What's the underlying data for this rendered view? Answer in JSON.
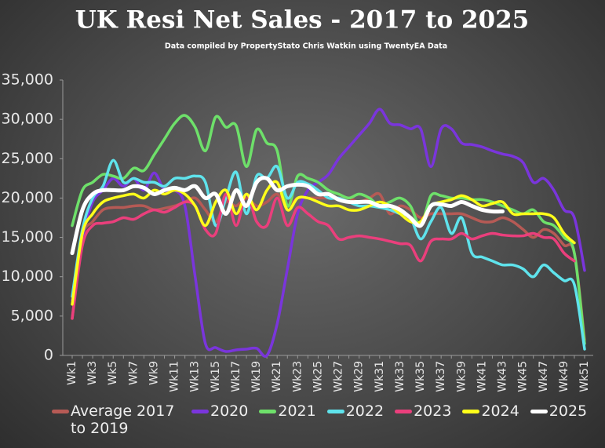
{
  "chart_data": {
    "type": "line",
    "title": "UK  Resi Net Sales - 2017 to 2025",
    "subtitle": "Data compiled by PropertyStato Chris Watkin using TwentyEA Data",
    "categories": [
      "Wk1",
      null,
      "Wk3",
      null,
      "Wk5",
      null,
      "Wk7",
      null,
      "Wk9",
      null,
      "Wk11",
      null,
      "Wk13",
      null,
      "Wk15",
      null,
      "Wk17",
      null,
      "Wk19",
      null,
      "Wk21",
      null,
      "Wk23",
      null,
      "Wk25",
      null,
      "Wk27",
      null,
      "Wk29",
      null,
      "Wk31",
      null,
      "Wk33",
      null,
      "Wk35",
      null,
      "Wk37",
      null,
      "Wk39",
      null,
      "Wk41",
      null,
      "Wk43",
      null,
      "Wk45",
      null,
      "Wk47",
      null,
      "Wk49",
      null,
      "Wk51"
    ],
    "ylim": [
      0,
      35000
    ],
    "yticks": [
      0,
      {
        "value": 5000,
        "label": "5,000"
      },
      {
        "value": 10000,
        "label": "10,000"
      },
      {
        "value": 15000,
        "label": "15,000"
      },
      {
        "value": 20000,
        "label": "20,000"
      },
      {
        "value": 25000,
        "label": "25,000"
      },
      {
        "value": 30000,
        "label": "30,000"
      },
      {
        "value": 35000,
        "label": "35,000"
      }
    ],
    "legend": "bottom",
    "series": [
      {
        "name": "Average 2017 to 2019",
        "color": "#b65a55",
        "values": [
          4700,
          15000,
          17000,
          18500,
          18800,
          18800,
          19000,
          19000,
          18500,
          18700,
          19000,
          19500,
          20000,
          18500,
          17000,
          19500,
          19000,
          20000,
          19000,
          19500,
          20500,
          19000,
          20000,
          20000,
          20000,
          20000,
          20000,
          20000,
          19500,
          20000,
          20500,
          18000,
          19000,
          18500,
          17500,
          18000,
          18000,
          18000,
          18000,
          17500,
          17000,
          17000,
          17500,
          17000,
          16000,
          15000,
          16000,
          15500,
          14000,
          13000,
          2000
        ]
      },
      {
        "name": "2020",
        "color": "#7a35dc",
        "values": [
          7000,
          15000,
          19500,
          21000,
          22500,
          21500,
          22500,
          21000,
          23200,
          21000,
          21000,
          19000,
          10000,
          1500,
          1000,
          500,
          700,
          800,
          900,
          0,
          4000,
          11000,
          18000,
          21000,
          22000,
          23000,
          25000,
          26500,
          28000,
          29500,
          31300,
          29500,
          29300,
          28800,
          28800,
          24000,
          28800,
          28800,
          27000,
          26800,
          26500,
          26000,
          25600,
          25300,
          24500,
          22000,
          22500,
          21000,
          18500,
          17500,
          10800
        ]
      },
      {
        "name": "2021",
        "color": "#6ee06a",
        "values": [
          16500,
          21000,
          22000,
          23000,
          22800,
          22500,
          23800,
          23500,
          25500,
          27500,
          29500,
          30500,
          29000,
          26000,
          30300,
          29000,
          29200,
          24000,
          28700,
          27000,
          26000,
          19000,
          22800,
          22500,
          22000,
          21000,
          20500,
          20000,
          20500,
          20000,
          19000,
          19500,
          20000,
          19000,
          16500,
          20300,
          20300,
          20000,
          20000,
          19800,
          19800,
          19500,
          19000,
          18500,
          18000,
          18500,
          17000,
          16500,
          15000,
          13000,
          1500
        ]
      },
      {
        "name": "2022",
        "color": "#5fe3ec",
        "values": [
          7500,
          16000,
          20000,
          21500,
          24800,
          22000,
          22500,
          22000,
          22000,
          21500,
          22500,
          22500,
          22800,
          22000,
          16500,
          20000,
          23300,
          18000,
          22800,
          22500,
          24000,
          20000,
          22000,
          21800,
          21000,
          20000,
          20000,
          19500,
          19000,
          19000,
          18800,
          18500,
          18000,
          17500,
          14800,
          17000,
          18800,
          15500,
          17500,
          13000,
          12500,
          12000,
          11500,
          11500,
          11000,
          10000,
          11500,
          10500,
          9500,
          9000,
          800
        ]
      },
      {
        "name": "2023",
        "color": "#ea3f7c",
        "values": [
          4700,
          14000,
          16500,
          16800,
          17000,
          17500,
          17300,
          18000,
          18500,
          18200,
          18800,
          19500,
          19000,
          16000,
          15500,
          20500,
          16500,
          20500,
          17000,
          16500,
          20000,
          16500,
          18800,
          18000,
          17000,
          16500,
          14800,
          15000,
          15200,
          15000,
          14800,
          14500,
          14200,
          14000,
          12000,
          14500,
          14800,
          14800,
          15500,
          14800,
          15200,
          15500,
          15300,
          15200,
          15200,
          15500,
          15000,
          14800,
          13000,
          12000,
          null
        ]
      },
      {
        "name": "2024",
        "color": "#ffff1a",
        "values": [
          6500,
          15500,
          18000,
          19500,
          20000,
          20300,
          20500,
          20000,
          21000,
          20500,
          21000,
          20500,
          19000,
          16500,
          19500,
          21000,
          18000,
          20500,
          18500,
          21000,
          22000,
          18500,
          20000,
          20000,
          19500,
          19000,
          19000,
          18500,
          18500,
          19000,
          19500,
          19000,
          18000,
          17000,
          17000,
          19000,
          19500,
          19800,
          20300,
          19800,
          19000,
          19300,
          19500,
          18000,
          18000,
          18000,
          18000,
          17500,
          15500,
          14300,
          null
        ]
      },
      {
        "name": "2025",
        "color": "#ffffff",
        "values": [
          13000,
          18500,
          20500,
          21000,
          21000,
          21000,
          21500,
          21300,
          20500,
          21000,
          21300,
          21000,
          21500,
          20000,
          20500,
          18000,
          21000,
          19000,
          22000,
          22500,
          21000,
          21500,
          21700,
          21500,
          20500,
          20500,
          19800,
          19500,
          19500,
          19500,
          19000,
          19000,
          18500,
          17500,
          16500,
          19000,
          19200,
          19000,
          19500,
          19000,
          18500,
          18300,
          18300,
          null,
          null,
          null,
          null,
          null,
          null,
          null,
          null
        ]
      }
    ]
  }
}
